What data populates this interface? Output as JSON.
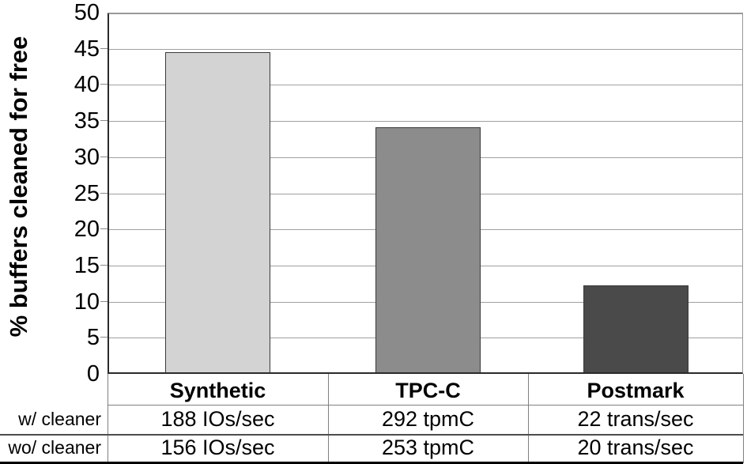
{
  "chart_data": {
    "type": "bar",
    "title": "",
    "categories": [
      "Synthetic",
      "TPC-C",
      "Postmark"
    ],
    "values": [
      44.3,
      33.9,
      12.0
    ],
    "xlabel": "",
    "ylabel": "% buffers cleaned for free",
    "ylim": [
      0,
      50
    ],
    "ytick_step": 5,
    "grid": true,
    "legend": "none",
    "bar_colors": [
      "#d3d3d3",
      "#8c8c8c",
      "#4a4a4a"
    ],
    "data_table": {
      "row_labels": [
        "w/ cleaner",
        "wo/ cleaner"
      ],
      "columns": [
        "Synthetic",
        "TPC-C",
        "Postmark"
      ],
      "rows": [
        [
          "188 IOs/sec",
          "292 tpmC",
          "22 trans/sec"
        ],
        [
          "156 IOs/sec",
          "253 tpmC",
          "20 trans/sec"
        ]
      ]
    }
  },
  "colors": {
    "axis": "#2b2b2b",
    "gridline": "#a0a0a0",
    "table_line_thin": "#808080",
    "table_line_dark": "#4d4d4d",
    "table_line_bottom": "#000000",
    "background": "#ffffff"
  }
}
